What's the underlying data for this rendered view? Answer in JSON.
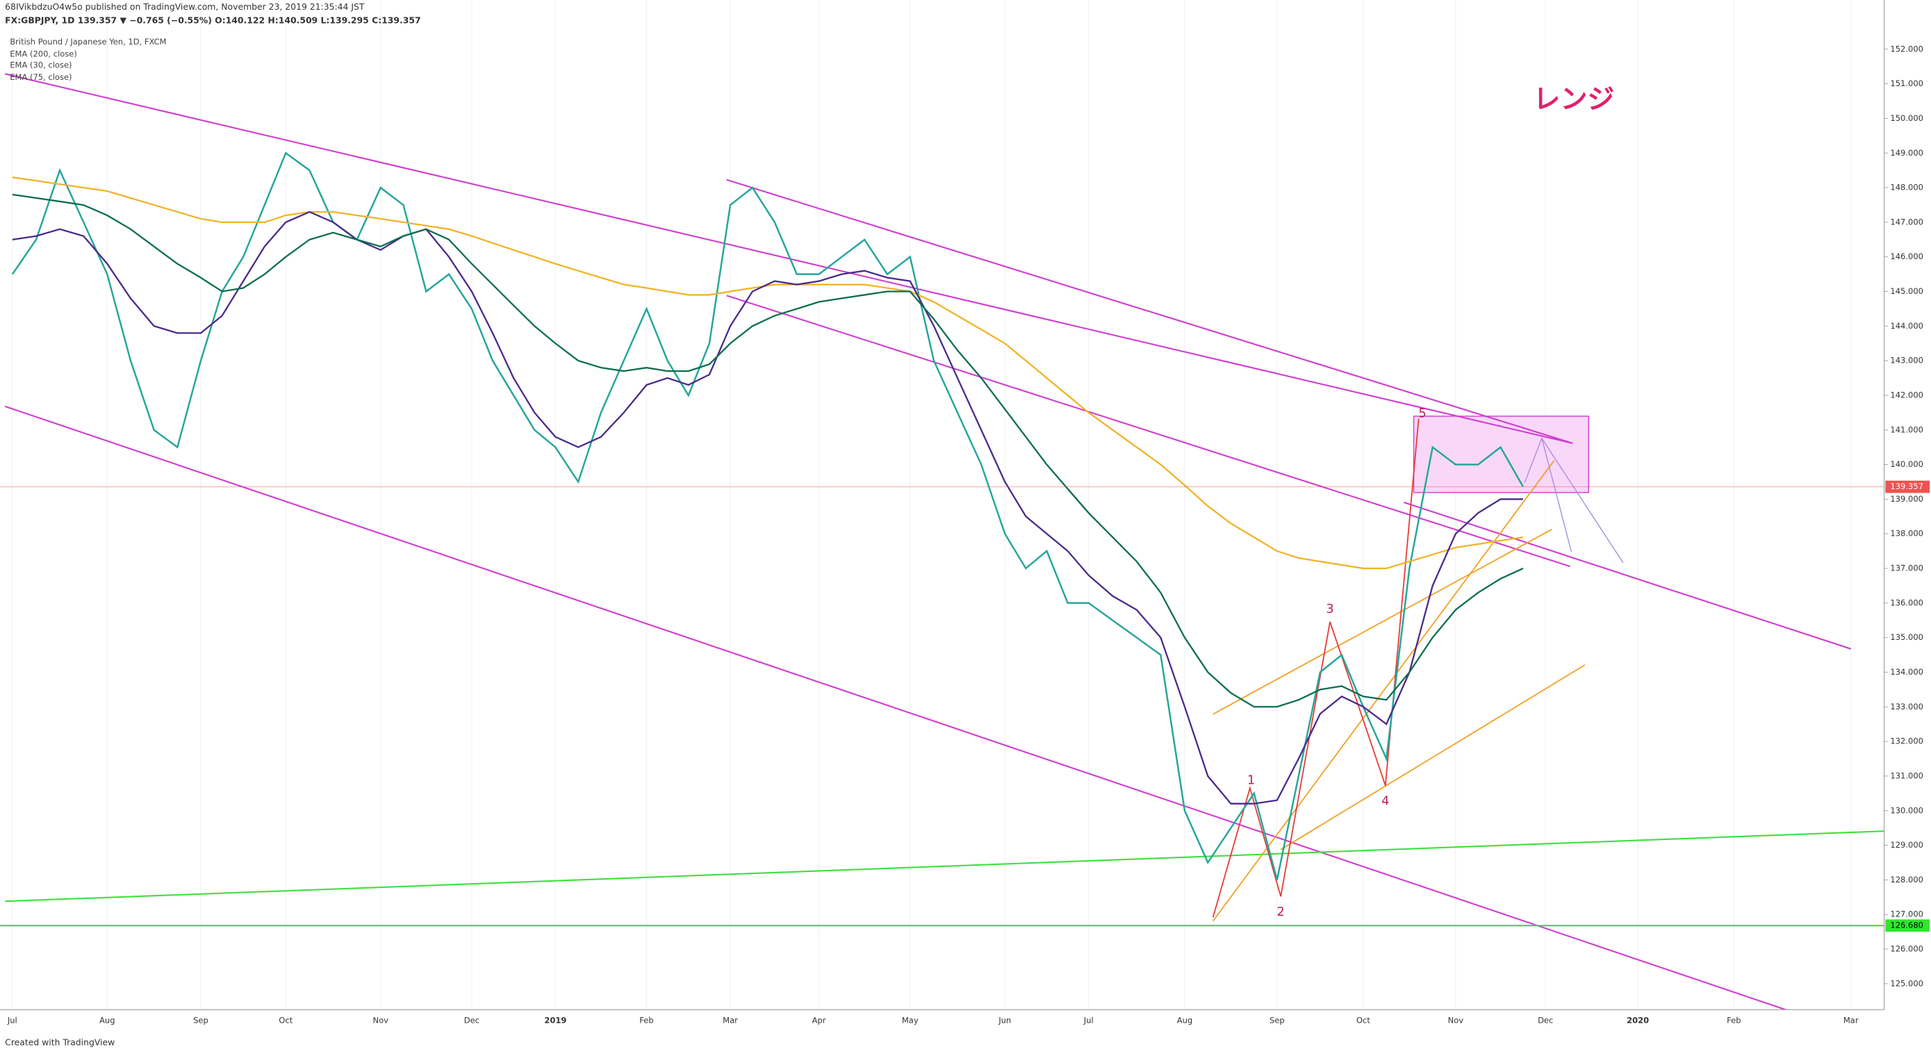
{
  "chart_data": {
    "type": "line",
    "subtitle": "68IVikbdzuO4w5o published on TradingView.com, November 23, 2019 21:35:44 JST",
    "symbol_line": "FX:GBPJPY, 1D  139.357 ▼ −0.765 (−0.55%) O:140.122 H:140.509 L:139.295 C:139.357",
    "categories": [
      "Jul",
      null,
      null,
      null,
      "Aug",
      null,
      null,
      null,
      "Sep",
      null,
      null,
      null,
      "Oct",
      null,
      null,
      null,
      "Nov",
      null,
      null,
      null,
      "Dec",
      null,
      null,
      null,
      "2019",
      null,
      null,
      null,
      "Feb",
      null,
      null,
      null,
      "Mar",
      null,
      null,
      null,
      "Apr",
      null,
      null,
      null,
      "May",
      null,
      null,
      null,
      "Jun",
      null,
      null,
      null,
      "Jul",
      null,
      null,
      null,
      "Aug",
      null,
      null,
      null,
      "Sep",
      null,
      null,
      null,
      "Oct",
      null,
      null,
      null,
      "Nov",
      null,
      null,
      null,
      "Dec",
      null,
      null,
      null,
      "2020",
      null,
      null,
      null,
      "Feb",
      null,
      null,
      null,
      "Mar",
      null,
      null,
      null
    ],
    "series": [
      {
        "name": "British Pound / Japanese Yen, 1D, FXCM",
        "color": "#26a69a",
        "values": [
          145.5,
          146.5,
          148.5,
          147,
          145.5,
          143,
          141,
          140.5,
          143,
          145,
          146,
          147.5,
          149,
          148.5,
          147,
          146.5,
          148,
          147.5,
          145,
          145.5,
          144.5,
          143,
          142,
          141,
          140.5,
          139.5,
          141.5,
          143,
          144.5,
          143,
          142,
          143.5,
          147.5,
          148,
          147,
          145.5,
          145.5,
          146,
          146.5,
          145.5,
          146,
          143,
          141.5,
          140,
          138,
          137,
          137.5,
          136,
          136,
          135.5,
          135,
          134.5,
          130,
          128.5,
          129.5,
          130.5,
          128,
          131,
          134,
          134.5,
          133,
          131.5,
          137,
          140.5,
          140,
          140,
          140.5,
          139.357,
          null,
          null,
          null,
          null,
          null,
          null,
          null,
          null,
          null,
          null,
          null,
          null,
          null,
          null,
          null,
          null
        ]
      },
      {
        "name": "EMA (200, close)",
        "color": "#f0b429",
        "values": [
          148.3,
          148.2,
          148.1,
          148.0,
          147.9,
          147.7,
          147.5,
          147.3,
          147.1,
          147.0,
          147.0,
          147.0,
          147.2,
          147.3,
          147.3,
          147.2,
          147.1,
          147.0,
          146.9,
          146.8,
          146.6,
          146.4,
          146.2,
          146.0,
          145.8,
          145.6,
          145.4,
          145.2,
          145.1,
          145.0,
          144.9,
          144.9,
          145.0,
          145.1,
          145.2,
          145.2,
          145.2,
          145.2,
          145.2,
          145.1,
          145.0,
          144.7,
          144.3,
          143.9,
          143.5,
          143.0,
          142.5,
          142.0,
          141.5,
          141.0,
          140.5,
          140.0,
          139.4,
          138.8,
          138.3,
          137.9,
          137.5,
          137.3,
          137.2,
          137.1,
          137.0,
          137.0,
          137.2,
          137.4,
          137.6,
          137.7,
          137.8,
          137.9,
          null,
          null,
          null,
          null,
          null,
          null,
          null,
          null,
          null,
          null,
          null,
          null,
          null,
          null,
          null,
          null
        ]
      },
      {
        "name": "EMA (30, close)",
        "color": "#4a2a8c",
        "values": [
          146.5,
          146.6,
          146.8,
          146.6,
          145.8,
          144.8,
          144.0,
          143.8,
          143.8,
          144.3,
          145.3,
          146.3,
          147.0,
          147.3,
          147.0,
          146.5,
          146.2,
          146.6,
          146.8,
          146.0,
          145.0,
          143.8,
          142.5,
          141.5,
          140.8,
          140.5,
          140.8,
          141.5,
          142.3,
          142.5,
          142.3,
          142.6,
          144.0,
          145.0,
          145.3,
          145.2,
          145.3,
          145.5,
          145.6,
          145.4,
          145.3,
          144.0,
          142.5,
          141.0,
          139.5,
          138.5,
          138.0,
          137.5,
          136.8,
          136.2,
          135.8,
          135.0,
          133.0,
          131.0,
          130.2,
          130.2,
          130.3,
          131.5,
          132.8,
          133.3,
          133.0,
          132.5,
          134.0,
          136.5,
          138.0,
          138.6,
          139.0,
          139.0,
          null,
          null,
          null,
          null,
          null,
          null,
          null,
          null,
          null,
          null,
          null,
          null,
          null,
          null,
          null,
          null
        ]
      },
      {
        "name": "EMA (75, close)",
        "color": "#0b6e4f",
        "values": [
          147.8,
          147.7,
          147.6,
          147.5,
          147.2,
          146.8,
          146.3,
          145.8,
          145.4,
          145.0,
          145.1,
          145.5,
          146.0,
          146.5,
          146.7,
          146.5,
          146.3,
          146.6,
          146.8,
          146.5,
          145.8,
          145.2,
          144.6,
          144.0,
          143.5,
          143.0,
          142.8,
          142.7,
          142.8,
          142.7,
          142.7,
          142.9,
          143.5,
          144.0,
          144.3,
          144.5,
          144.7,
          144.8,
          144.9,
          145.0,
          145.0,
          144.2,
          143.3,
          142.5,
          141.6,
          140.8,
          140.0,
          139.3,
          138.6,
          137.9,
          137.2,
          136.3,
          135.0,
          134.0,
          133.4,
          133.0,
          133.0,
          133.2,
          133.5,
          133.6,
          133.3,
          133.2,
          134.0,
          135.0,
          135.8,
          136.3,
          136.7,
          137.0,
          null,
          null,
          null,
          null,
          null,
          null,
          null,
          null,
          null,
          null,
          null,
          null,
          null,
          null,
          null,
          null
        ]
      }
    ],
    "ylim": [
      124.25,
      152.71
    ],
    "yticks": [
      {
        "value": 125,
        "label": "125.000"
      },
      {
        "value": 126,
        "label": "126.000"
      },
      {
        "value": 127,
        "label": "127.000"
      },
      {
        "value": 128,
        "label": "128.000"
      },
      {
        "value": 129,
        "label": "129.000"
      },
      {
        "value": 130,
        "label": "130.000"
      },
      {
        "value": 131,
        "label": "131.000"
      },
      {
        "value": 132,
        "label": "132.000"
      },
      {
        "value": 133,
        "label": "133.000"
      },
      {
        "value": 134,
        "label": "134.000"
      },
      {
        "value": 135,
        "label": "135.000"
      },
      {
        "value": 136,
        "label": "136.000"
      },
      {
        "value": 137,
        "label": "137.000"
      },
      {
        "value": 138,
        "label": "138.000"
      },
      {
        "value": 139,
        "label": "139.000"
      },
      {
        "value": 140,
        "label": "140.000"
      },
      {
        "value": 141,
        "label": "141.000"
      },
      {
        "value": 142,
        "label": "142.000"
      },
      {
        "value": 143,
        "label": "143.000"
      },
      {
        "value": 144,
        "label": "144.000"
      },
      {
        "value": 145,
        "label": "145.000"
      },
      {
        "value": 146,
        "label": "146.000"
      },
      {
        "value": 147,
        "label": "147.000"
      },
      {
        "value": 148,
        "label": "148.000"
      },
      {
        "value": 149,
        "label": "149.000"
      },
      {
        "value": 150,
        "label": "150.000"
      },
      {
        "value": 151,
        "label": "151.000"
      },
      {
        "value": 152,
        "label": "152.000"
      }
    ],
    "grid": true,
    "last_price": 139.357,
    "last_price_color": "#ef5350",
    "support_level": {
      "value": 126.68,
      "label": "126.680"
    },
    "support_color": "#2ee82e",
    "annotations": [
      "レンジ",
      "1",
      "2",
      "3",
      "4",
      "5"
    ]
  },
  "footer": "Created with TradingView"
}
